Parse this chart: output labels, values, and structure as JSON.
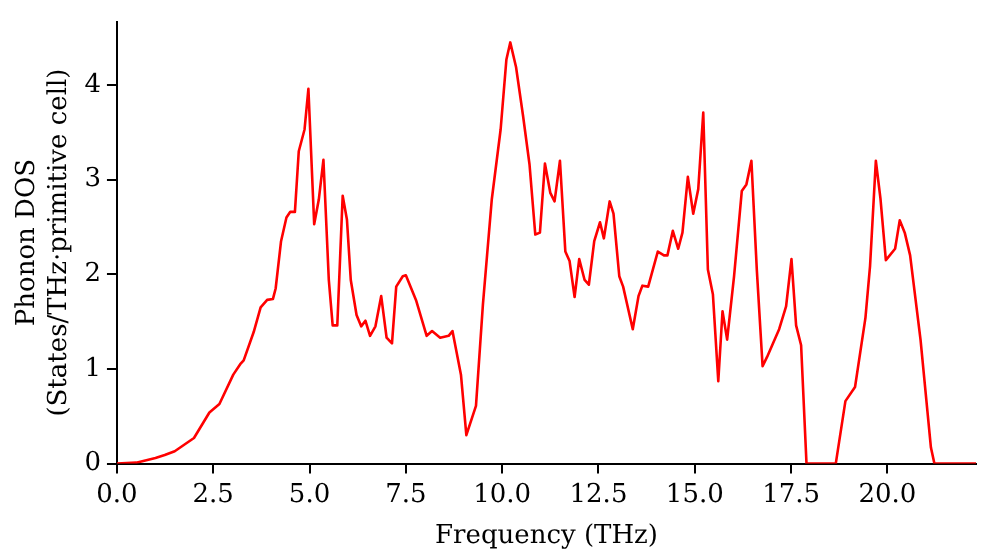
{
  "chart_data": {
    "type": "line",
    "xlabel": "Frequency (THz)",
    "ylabel": "Phonon DOS\n(States/THz·primitive cell)",
    "xlim": [
      0,
      22.3
    ],
    "ylim": [
      0,
      4.67
    ],
    "xticks": [
      {
        "value": 0,
        "label": "0.0"
      },
      {
        "value": 2.5,
        "label": "2.5"
      },
      {
        "value": 5,
        "label": "5.0"
      },
      {
        "value": 7.5,
        "label": "7.5"
      },
      {
        "value": 10,
        "label": "10.0"
      },
      {
        "value": 12.5,
        "label": "12.5"
      },
      {
        "value": 15,
        "label": "15.0"
      },
      {
        "value": 17.5,
        "label": "17.5"
      },
      {
        "value": 20,
        "label": "20.0"
      }
    ],
    "yticks": [
      0,
      1,
      2,
      3,
      4
    ],
    "grid": false,
    "legend": false,
    "marker": "none",
    "line_style": "solid",
    "series": [
      {
        "color": "#ff0000",
        "x": [
          0,
          0.5,
          1,
          1.24,
          1.5,
          2,
          2.4,
          2.66,
          3.02,
          3.2,
          3.29,
          3.55,
          3.73,
          3.9,
          4.05,
          4.12,
          4.26,
          4.4,
          4.5,
          4.62,
          4.72,
          4.87,
          4.97,
          5.12,
          5.24,
          5.36,
          5.5,
          5.6,
          5.72,
          5.86,
          5.97,
          6.07,
          6.22,
          6.34,
          6.45,
          6.57,
          6.71,
          6.86,
          7.0,
          7.14,
          7.25,
          7.42,
          7.5,
          7.77,
          8.04,
          8.18,
          8.39,
          8.61,
          8.71,
          8.93,
          9.07,
          9.32,
          9.5,
          9.73,
          9.96,
          10.11,
          10.21,
          10.36,
          10.54,
          10.71,
          10.86,
          10.98,
          11.11,
          11.25,
          11.36,
          11.5,
          11.64,
          11.75,
          11.88,
          12.0,
          12.14,
          12.25,
          12.39,
          12.54,
          12.64,
          12.79,
          12.89,
          13.04,
          13.14,
          13.39,
          13.54,
          13.64,
          13.79,
          14.04,
          14.2,
          14.29,
          14.43,
          14.57,
          14.68,
          14.82,
          14.96,
          15.09,
          15.22,
          15.34,
          15.47,
          15.61,
          15.72,
          15.84,
          16.02,
          16.22,
          16.34,
          16.47,
          16.61,
          16.76,
          16.88,
          17.04,
          17.19,
          17.37,
          17.51,
          17.63,
          17.76,
          17.9,
          18.66,
          18.91,
          19.16,
          19.43,
          19.55,
          19.7,
          19.82,
          19.96,
          20.2,
          20.32,
          20.45,
          20.59,
          20.86,
          21.13,
          21.22,
          22.3
        ],
        "values": [
          0,
          0.01,
          0.06,
          0.09,
          0.13,
          0.27,
          0.54,
          0.63,
          0.94,
          1.05,
          1.09,
          1.39,
          1.65,
          1.73,
          1.74,
          1.85,
          2.35,
          2.6,
          2.66,
          2.66,
          3.3,
          3.53,
          3.96,
          2.53,
          2.79,
          3.21,
          1.94,
          1.46,
          1.46,
          2.83,
          2.58,
          1.94,
          1.57,
          1.45,
          1.51,
          1.35,
          1.45,
          1.77,
          1.33,
          1.27,
          1.87,
          1.98,
          1.99,
          1.72,
          1.35,
          1.4,
          1.33,
          1.35,
          1.4,
          0.94,
          0.3,
          0.61,
          1.68,
          2.79,
          3.53,
          4.27,
          4.45,
          4.19,
          3.68,
          3.16,
          2.42,
          2.44,
          3.17,
          2.86,
          2.77,
          3.2,
          2.24,
          2.14,
          1.76,
          2.16,
          1.94,
          1.89,
          2.35,
          2.55,
          2.38,
          2.77,
          2.64,
          1.98,
          1.87,
          1.42,
          1.77,
          1.88,
          1.87,
          2.24,
          2.2,
          2.2,
          2.46,
          2.27,
          2.44,
          3.03,
          2.64,
          2.9,
          3.71,
          2.05,
          1.79,
          0.87,
          1.61,
          1.31,
          1.98,
          2.88,
          2.95,
          3.2,
          2.05,
          1.03,
          1.13,
          1.28,
          1.42,
          1.66,
          2.16,
          1.46,
          1.25,
          0,
          0,
          0.66,
          0.81,
          1.54,
          2.09,
          3.2,
          2.8,
          2.15,
          2.27,
          2.57,
          2.44,
          2.2,
          1.31,
          0.17,
          0,
          0
        ]
      }
    ]
  }
}
